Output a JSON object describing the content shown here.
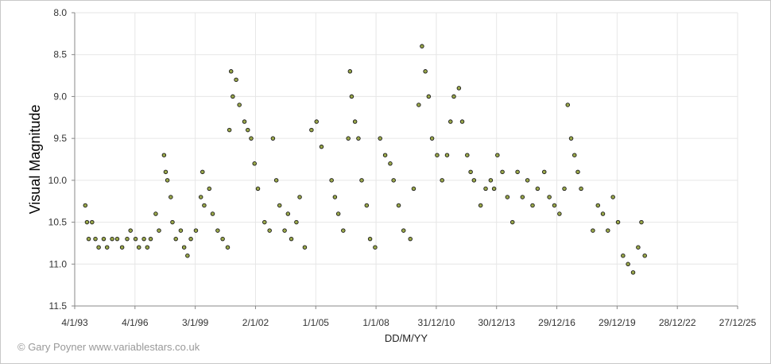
{
  "credit": "© Gary Poyner www.variablestars.co.uk",
  "chart_data": {
    "type": "scatter",
    "xlabel": "DD/M/YY",
    "ylabel": "Visual Magnitude",
    "y_inverted": true,
    "ylim": [
      8.0,
      11.5
    ],
    "xlim": [
      "4/1/93",
      "27/12/25"
    ],
    "x_ticks": [
      "4/1/93",
      "4/1/96",
      "3/1/99",
      "2/1/02",
      "1/1/05",
      "1/1/08",
      "31/12/10",
      "30/12/13",
      "29/12/16",
      "29/12/19",
      "28/12/22",
      "27/12/25"
    ],
    "y_ticks": [
      "8.0",
      "8.5",
      "9.0",
      "9.5",
      "10.0",
      "10.5",
      "11.0",
      "11.5"
    ],
    "grid": true,
    "marker_color": "#9aa84a",
    "marker_edge": "#1a1a1a",
    "series": [
      {
        "points": [
          [
            "1993-07",
            10.3
          ],
          [
            "1993-08",
            10.5
          ],
          [
            "1993-09",
            10.7
          ],
          [
            "1993-11",
            10.5
          ],
          [
            "1994-01",
            10.7
          ],
          [
            "1994-03",
            10.8
          ],
          [
            "1994-06",
            10.7
          ],
          [
            "1994-08",
            10.8
          ],
          [
            "1994-11",
            10.7
          ],
          [
            "1995-02",
            10.7
          ],
          [
            "1995-05",
            10.8
          ],
          [
            "1995-08",
            10.7
          ],
          [
            "1995-10",
            10.6
          ],
          [
            "1996-01",
            10.7
          ],
          [
            "1996-03",
            10.8
          ],
          [
            "1996-06",
            10.7
          ],
          [
            "1996-08",
            10.8
          ],
          [
            "1996-10",
            10.7
          ],
          [
            "1997-01",
            10.4
          ],
          [
            "1997-03",
            10.6
          ],
          [
            "1997-06",
            9.7
          ],
          [
            "1997-07",
            9.9
          ],
          [
            "1997-08",
            10.0
          ],
          [
            "1997-10",
            10.2
          ],
          [
            "1997-11",
            10.5
          ],
          [
            "1998-01",
            10.7
          ],
          [
            "1998-04",
            10.6
          ],
          [
            "1998-06",
            10.8
          ],
          [
            "1998-08",
            10.9
          ],
          [
            "1998-10",
            10.7
          ],
          [
            "1999-01",
            10.6
          ],
          [
            "1999-04",
            10.2
          ],
          [
            "1999-05",
            9.9
          ],
          [
            "1999-06",
            10.3
          ],
          [
            "1999-09",
            10.1
          ],
          [
            "1999-11",
            10.4
          ],
          [
            "2000-02",
            10.6
          ],
          [
            "2000-05",
            10.7
          ],
          [
            "2000-08",
            10.8
          ],
          [
            "2000-09",
            9.4
          ],
          [
            "2000-10",
            8.7
          ],
          [
            "2000-11",
            9.0
          ],
          [
            "2001-01",
            8.8
          ],
          [
            "2001-03",
            9.1
          ],
          [
            "2001-06",
            9.3
          ],
          [
            "2001-08",
            9.4
          ],
          [
            "2001-10",
            9.5
          ],
          [
            "2001-12",
            9.8
          ],
          [
            "2002-02",
            10.1
          ],
          [
            "2002-06",
            10.5
          ],
          [
            "2002-09",
            10.6
          ],
          [
            "2002-11",
            9.5
          ],
          [
            "2003-01",
            10.0
          ],
          [
            "2003-03",
            10.3
          ],
          [
            "2003-06",
            10.6
          ],
          [
            "2003-08",
            10.4
          ],
          [
            "2003-10",
            10.7
          ],
          [
            "2004-01",
            10.5
          ],
          [
            "2004-03",
            10.2
          ],
          [
            "2004-06",
            10.8
          ],
          [
            "2004-10",
            9.4
          ],
          [
            "2005-01",
            9.3
          ],
          [
            "2005-04",
            9.6
          ],
          [
            "2005-10",
            10.0
          ],
          [
            "2005-12",
            10.2
          ],
          [
            "2006-02",
            10.4
          ],
          [
            "2006-05",
            10.6
          ],
          [
            "2006-08",
            9.5
          ],
          [
            "2006-09",
            8.7
          ],
          [
            "2006-10",
            9.0
          ],
          [
            "2006-12",
            9.3
          ],
          [
            "2007-02",
            9.5
          ],
          [
            "2007-04",
            10.0
          ],
          [
            "2007-07",
            10.3
          ],
          [
            "2007-09",
            10.7
          ],
          [
            "2007-12",
            10.8
          ],
          [
            "2008-03",
            9.5
          ],
          [
            "2008-06",
            9.7
          ],
          [
            "2008-09",
            9.8
          ],
          [
            "2008-11",
            10.0
          ],
          [
            "2009-02",
            10.3
          ],
          [
            "2009-05",
            10.6
          ],
          [
            "2009-09",
            10.7
          ],
          [
            "2009-11",
            10.1
          ],
          [
            "2010-02",
            9.1
          ],
          [
            "2010-04",
            8.4
          ],
          [
            "2010-06",
            8.7
          ],
          [
            "2010-08",
            9.0
          ],
          [
            "2010-10",
            9.5
          ],
          [
            "2011-01",
            9.7
          ],
          [
            "2011-04",
            10.0
          ],
          [
            "2011-07",
            9.7
          ],
          [
            "2011-09",
            9.3
          ],
          [
            "2011-11",
            9.0
          ],
          [
            "2012-02",
            8.9
          ],
          [
            "2012-04",
            9.3
          ],
          [
            "2012-07",
            9.7
          ],
          [
            "2012-09",
            9.9
          ],
          [
            "2012-11",
            10.0
          ],
          [
            "2013-03",
            10.3
          ],
          [
            "2013-06",
            10.1
          ],
          [
            "2013-09",
            10.0
          ],
          [
            "2013-11",
            10.1
          ],
          [
            "2014-01",
            9.7
          ],
          [
            "2014-04",
            9.9
          ],
          [
            "2014-07",
            10.2
          ],
          [
            "2014-10",
            10.5
          ],
          [
            "2015-01",
            9.9
          ],
          [
            "2015-04",
            10.2
          ],
          [
            "2015-07",
            10.0
          ],
          [
            "2015-10",
            10.3
          ],
          [
            "2016-01",
            10.1
          ],
          [
            "2016-05",
            9.9
          ],
          [
            "2016-08",
            10.2
          ],
          [
            "2016-11",
            10.3
          ],
          [
            "2017-02",
            10.4
          ],
          [
            "2017-05",
            10.1
          ],
          [
            "2017-07",
            9.1
          ],
          [
            "2017-09",
            9.5
          ],
          [
            "2017-11",
            9.7
          ],
          [
            "2018-01",
            9.9
          ],
          [
            "2018-03",
            10.1
          ],
          [
            "2018-10",
            10.6
          ],
          [
            "2019-01",
            10.3
          ],
          [
            "2019-04",
            10.4
          ],
          [
            "2019-07",
            10.6
          ],
          [
            "2019-10",
            10.2
          ],
          [
            "2020-01",
            10.5
          ],
          [
            "2020-04",
            10.9
          ],
          [
            "2020-07",
            11.0
          ],
          [
            "2020-10",
            11.1
          ],
          [
            "2021-01",
            10.8
          ],
          [
            "2021-03",
            10.5
          ],
          [
            "2021-05",
            10.9
          ]
        ]
      }
    ]
  }
}
